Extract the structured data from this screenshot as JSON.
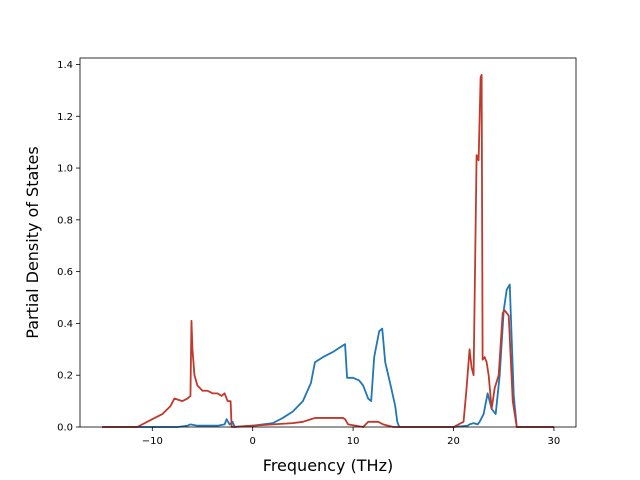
{
  "chart_data": {
    "type": "line",
    "title": "",
    "xlabel": "Frequency (THz)",
    "ylabel": "Partial Density of States",
    "xlim": [
      -17.2,
      32.2
    ],
    "ylim": [
      0,
      1.425
    ],
    "xticks": [
      -10,
      0,
      10,
      20,
      30
    ],
    "yticks": [
      0.0,
      0.2,
      0.4,
      0.6,
      0.8,
      1.0,
      1.2,
      1.4
    ],
    "xtick_labels": [
      "−10",
      "0",
      "10",
      "20",
      "30"
    ],
    "ytick_labels": [
      "0.0",
      "0.2",
      "0.4",
      "0.6",
      "0.8",
      "1.0",
      "1.2",
      "1.4"
    ],
    "grid": false,
    "legend": "none",
    "series": [
      {
        "color": "#1f77b4",
        "x": [
          -15,
          -7.5,
          -6.5,
          -6.2,
          -5.5,
          -3.5,
          -2.8,
          -2.6,
          -2.3,
          -2.0,
          -1.8,
          0,
          1,
          2,
          3,
          4,
          5,
          5.8,
          6.2,
          7,
          8,
          8.8,
          9.2,
          9.4,
          10,
          10.6,
          11,
          11.5,
          11.8,
          12.1,
          12.6,
          12.9,
          13.2,
          13.8,
          14.2,
          14.4,
          14.6,
          20,
          21.4,
          21.6,
          22,
          22.4,
          22.6,
          23.0,
          23.4,
          23.8,
          24.2,
          24.6,
          25.0,
          25.3,
          25.6,
          26.0,
          26.3,
          30
        ],
        "y": [
          0,
          0.0,
          0.005,
          0.01,
          0.005,
          0.005,
          0.01,
          0.03,
          0.01,
          0.02,
          0.0,
          0.005,
          0.01,
          0.015,
          0.035,
          0.06,
          0.1,
          0.17,
          0.25,
          0.27,
          0.29,
          0.31,
          0.32,
          0.19,
          0.19,
          0.18,
          0.16,
          0.11,
          0.1,
          0.27,
          0.37,
          0.38,
          0.25,
          0.15,
          0.08,
          0.02,
          0.0,
          0.0,
          0.005,
          0.01,
          0.015,
          0.01,
          0.02,
          0.05,
          0.13,
          0.07,
          0.05,
          0.2,
          0.45,
          0.53,
          0.55,
          0.12,
          0.0,
          0
        ]
      },
      {
        "color": "#c0392b",
        "x": [
          -15,
          -11.5,
          -10,
          -9,
          -8.2,
          -7.8,
          -7,
          -6.5,
          -6.2,
          -6.1,
          -6.0,
          -5.8,
          -5.5,
          -5.0,
          -4.5,
          -4.0,
          -3.5,
          -3.1,
          -2.8,
          -2.5,
          -2.2,
          -2.1,
          0,
          2,
          4,
          5,
          5.8,
          6.2,
          7,
          8,
          9,
          9.2,
          9.5,
          11.0,
          11.5,
          12.0,
          12.5,
          13.0,
          13.5,
          14,
          20,
          21.0,
          21.3,
          21.6,
          21.8,
          22.0,
          22.3,
          22.5,
          22.7,
          22.8,
          22.9,
          23.1,
          23.3,
          23.5,
          23.8,
          24.1,
          24.5,
          24.9,
          25.1,
          25.5,
          25.9,
          26.3,
          26.7,
          30
        ],
        "y": [
          0,
          0.0,
          0.03,
          0.05,
          0.08,
          0.11,
          0.1,
          0.11,
          0.12,
          0.41,
          0.3,
          0.2,
          0.16,
          0.14,
          0.14,
          0.13,
          0.13,
          0.12,
          0.13,
          0.1,
          0.1,
          0.0,
          0.005,
          0.01,
          0.015,
          0.02,
          0.03,
          0.035,
          0.035,
          0.035,
          0.035,
          0.03,
          0.01,
          0.0,
          0.02,
          0.02,
          0.02,
          0.01,
          0.005,
          0.0,
          0.0,
          0.02,
          0.15,
          0.3,
          0.23,
          0.2,
          1.05,
          1.03,
          1.35,
          1.36,
          0.26,
          0.27,
          0.25,
          0.2,
          0.07,
          0.15,
          0.2,
          0.44,
          0.45,
          0.43,
          0.1,
          0.0,
          0.0,
          0
        ]
      }
    ]
  }
}
